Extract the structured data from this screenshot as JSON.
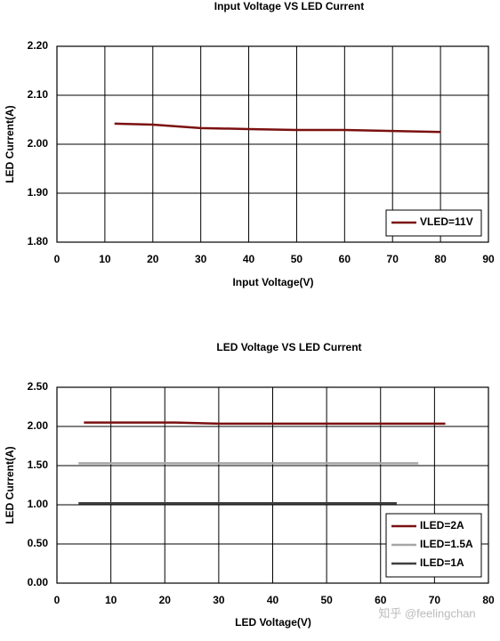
{
  "chart_data": [
    {
      "type": "line",
      "title": "Input Voltage VS LED Current",
      "xlabel": "Input Voltage(V)",
      "ylabel": "LED Current(A)",
      "xlim": [
        0,
        90
      ],
      "xticks": [
        0,
        10,
        20,
        30,
        40,
        50,
        60,
        70,
        80,
        90
      ],
      "ylim": [
        1.8,
        2.2
      ],
      "yticks": [
        {
          "value": 1.8,
          "label": "1.80"
        },
        {
          "value": 1.9,
          "label": "1.90"
        },
        {
          "value": 2.0,
          "label": "2.00"
        },
        {
          "value": 2.1,
          "label": "2.10"
        },
        {
          "value": 2.2,
          "label": "2.20"
        }
      ],
      "grid": true,
      "legend": "lower right",
      "series": [
        {
          "name": "VLED=11V",
          "color": "#7b1010",
          "x": [
            12,
            20,
            30,
            40,
            50,
            60,
            70,
            80
          ],
          "values": [
            2.042,
            2.04,
            2.033,
            2.031,
            2.029,
            2.029,
            2.027,
            2.025
          ]
        }
      ]
    },
    {
      "type": "line",
      "title": "LED Voltage VS LED Current",
      "xlabel": "LED Voltage(V)",
      "ylabel": "LED Current(A)",
      "xlim": [
        0,
        80
      ],
      "xticks": [
        0,
        10,
        20,
        30,
        40,
        50,
        60,
        70,
        80
      ],
      "ylim": [
        0,
        2.5
      ],
      "yticks": [
        {
          "value": 0,
          "label": "0.00"
        },
        {
          "value": 0.5,
          "label": "0.50"
        },
        {
          "value": 1.0,
          "label": "1.00"
        },
        {
          "value": 1.5,
          "label": "1.50"
        },
        {
          "value": 2.0,
          "label": "2.00"
        },
        {
          "value": 2.5,
          "label": "2.50"
        }
      ],
      "grid": true,
      "legend": "lower right",
      "series": [
        {
          "name": "ILED=2A",
          "color": "#7b1010",
          "x": [
            5,
            22,
            30,
            72
          ],
          "values": [
            2.05,
            2.05,
            2.035,
            2.035
          ]
        },
        {
          "name": "ILED=1.5A",
          "color": "#a6a6a6",
          "x": [
            4,
            67
          ],
          "values": [
            1.53,
            1.53
          ]
        },
        {
          "name": "ILED=1A",
          "color": "#404040",
          "x": [
            4,
            63
          ],
          "values": [
            1.02,
            1.02
          ]
        }
      ]
    }
  ],
  "watermark": "知乎 @feelingchan"
}
